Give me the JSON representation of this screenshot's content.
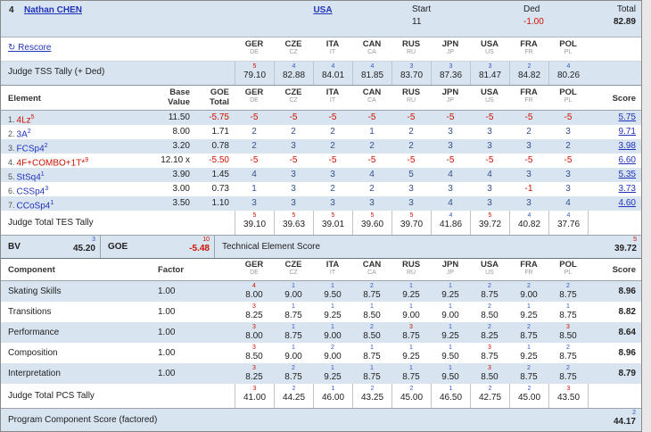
{
  "header": {
    "placement": "4",
    "skater": "Nathan CHEN",
    "nation": "USA",
    "start_label": "Start",
    "start_value": "11",
    "ded_label": "Ded",
    "ded_value": "-1.00",
    "total_label": "Total",
    "total_value": "82.89",
    "rescore_icon": "↻",
    "rescore_label": "Rescore"
  },
  "judges": [
    {
      "code": "GER",
      "sub": "DE"
    },
    {
      "code": "CZE",
      "sub": "CZ"
    },
    {
      "code": "ITA",
      "sub": "IT"
    },
    {
      "code": "CAN",
      "sub": "CA"
    },
    {
      "code": "RUS",
      "sub": "RU"
    },
    {
      "code": "JPN",
      "sub": "JP"
    },
    {
      "code": "USA",
      "sub": "US"
    },
    {
      "code": "FRA",
      "sub": "FR"
    },
    {
      "code": "POL",
      "sub": "PL"
    }
  ],
  "tss_tally": {
    "label": "Judge TSS Tally (+ Ded)",
    "cells": [
      {
        "rank": "5",
        "rc": "r",
        "value": "79.10"
      },
      {
        "rank": "4",
        "rc": "b",
        "value": "82.88"
      },
      {
        "rank": "4",
        "rc": "b",
        "value": "84.01"
      },
      {
        "rank": "4",
        "rc": "b",
        "value": "81.85"
      },
      {
        "rank": "3",
        "rc": "b",
        "value": "83.70"
      },
      {
        "rank": "3",
        "rc": "b",
        "value": "87.36"
      },
      {
        "rank": "3",
        "rc": "b",
        "value": "81.47"
      },
      {
        "rank": "2",
        "rc": "b",
        "value": "84.82"
      },
      {
        "rank": "4",
        "rc": "b",
        "value": "80.26"
      }
    ]
  },
  "elements": {
    "col_element": "Element",
    "col_base_1": "Base",
    "col_base_2": "Value",
    "col_goe_1": "GOE",
    "col_goe_2": "Total",
    "col_score": "Score",
    "rows": [
      {
        "num": "1.",
        "name": "4Lz",
        "sup": "5",
        "neg": true,
        "base": "11.50",
        "goe": "-5.75",
        "marks": [
          "-5",
          "-5",
          "-5",
          "-5",
          "-5",
          "-5",
          "-5",
          "-5",
          "-5"
        ],
        "score": "5.75"
      },
      {
        "num": "2.",
        "name": "3A",
        "sup": "2",
        "neg": false,
        "base": "8.00",
        "goe": "1.71",
        "marks": [
          "2",
          "2",
          "2",
          "1",
          "2",
          "3",
          "3",
          "2",
          "3"
        ],
        "score": "9.71"
      },
      {
        "num": "3.",
        "name": "FCSp4",
        "sup": "2",
        "neg": false,
        "base": "3.20",
        "goe": "0.78",
        "marks": [
          "2",
          "3",
          "2",
          "2",
          "2",
          "3",
          "3",
          "3",
          "2"
        ],
        "score": "3.98"
      },
      {
        "num": "4.",
        "name": "4F+COMBO+1T*",
        "sup": "9",
        "neg": true,
        "base": "12.10 x",
        "goe": "-5.50",
        "marks": [
          "-5",
          "-5",
          "-5",
          "-5",
          "-5",
          "-5",
          "-5",
          "-5",
          "-5"
        ],
        "score": "6.60"
      },
      {
        "num": "5.",
        "name": "StSq4",
        "sup": "1",
        "neg": false,
        "base": "3.90",
        "goe": "1.45",
        "marks": [
          "4",
          "3",
          "3",
          "4",
          "5",
          "4",
          "4",
          "3",
          "3"
        ],
        "score": "5.35"
      },
      {
        "num": "6.",
        "name": "CSSp4",
        "sup": "3",
        "neg": false,
        "base": "3.00",
        "goe": "0.73",
        "marks": [
          "1",
          "3",
          "2",
          "2",
          "3",
          "3",
          "3",
          "-1",
          "3"
        ],
        "score": "3.73"
      },
      {
        "num": "7.",
        "name": "CCoSp4",
        "sup": "1",
        "neg": false,
        "base": "3.50",
        "goe": "1.10",
        "marks": [
          "3",
          "3",
          "3",
          "3",
          "3",
          "4",
          "3",
          "3",
          "4"
        ],
        "score": "4.60"
      }
    ],
    "tes_tally": {
      "label": "Judge Total TES Tally",
      "cells": [
        {
          "rank": "5",
          "rc": "r",
          "value": "39.10"
        },
        {
          "rank": "5",
          "rc": "r",
          "value": "39.63"
        },
        {
          "rank": "5",
          "rc": "r",
          "value": "39.01"
        },
        {
          "rank": "5",
          "rc": "r",
          "value": "39.60"
        },
        {
          "rank": "5",
          "rc": "r",
          "value": "39.70"
        },
        {
          "rank": "4",
          "rc": "b",
          "value": "41.86"
        },
        {
          "rank": "5",
          "rc": "r",
          "value": "39.72"
        },
        {
          "rank": "4",
          "rc": "b",
          "value": "40.82"
        },
        {
          "rank": "4",
          "rc": "b",
          "value": "37.76"
        }
      ]
    }
  },
  "summary": {
    "bv_label": "BV",
    "bv_rank": "3",
    "bv_value": "45.20",
    "goe_label": "GOE",
    "goe_rank": "10",
    "goe_value": "-5.48",
    "tes_label": "Technical Element Score",
    "tes_rank": "5",
    "tes_value": "39.72"
  },
  "components": {
    "col_component": "Component",
    "col_factor": "Factor",
    "col_score": "Score",
    "rows": [
      {
        "name": "Skating Skills",
        "factor": "1.00",
        "score": "8.96",
        "cells": [
          {
            "rank": "4",
            "rc": "r",
            "value": "8.00"
          },
          {
            "rank": "1",
            "rc": "b",
            "value": "9.00"
          },
          {
            "rank": "1",
            "rc": "b",
            "value": "9.50"
          },
          {
            "rank": "2",
            "rc": "b",
            "value": "8.75"
          },
          {
            "rank": "1",
            "rc": "b",
            "value": "9.25"
          },
          {
            "rank": "1",
            "rc": "b",
            "value": "9.25"
          },
          {
            "rank": "2",
            "rc": "b",
            "value": "8.75"
          },
          {
            "rank": "2",
            "rc": "b",
            "value": "9.00"
          },
          {
            "rank": "2",
            "rc": "b",
            "value": "8.75"
          }
        ]
      },
      {
        "name": "Transitions",
        "factor": "1.00",
        "score": "8.82",
        "cells": [
          {
            "rank": "3",
            "rc": "r",
            "value": "8.25"
          },
          {
            "rank": "1",
            "rc": "b",
            "value": "8.75"
          },
          {
            "rank": "1",
            "rc": "b",
            "value": "9.25"
          },
          {
            "rank": "1",
            "rc": "b",
            "value": "8.50"
          },
          {
            "rank": "1",
            "rc": "b",
            "value": "9.00"
          },
          {
            "rank": "1",
            "rc": "b",
            "value": "9.00"
          },
          {
            "rank": "2",
            "rc": "b",
            "value": "8.50"
          },
          {
            "rank": "1",
            "rc": "b",
            "value": "9.25"
          },
          {
            "rank": "1",
            "rc": "b",
            "value": "8.75"
          }
        ]
      },
      {
        "name": "Performance",
        "factor": "1.00",
        "score": "8.64",
        "cells": [
          {
            "rank": "3",
            "rc": "r",
            "value": "8.00"
          },
          {
            "rank": "1",
            "rc": "b",
            "value": "8.75"
          },
          {
            "rank": "1",
            "rc": "b",
            "value": "9.00"
          },
          {
            "rank": "2",
            "rc": "b",
            "value": "8.50"
          },
          {
            "rank": "3",
            "rc": "r",
            "value": "8.75"
          },
          {
            "rank": "1",
            "rc": "b",
            "value": "9.25"
          },
          {
            "rank": "2",
            "rc": "b",
            "value": "8.25"
          },
          {
            "rank": "2",
            "rc": "b",
            "value": "8.75"
          },
          {
            "rank": "3",
            "rc": "r",
            "value": "8.50"
          }
        ]
      },
      {
        "name": "Composition",
        "factor": "1.00",
        "score": "8.96",
        "cells": [
          {
            "rank": "3",
            "rc": "r",
            "value": "8.50"
          },
          {
            "rank": "1",
            "rc": "b",
            "value": "9.00"
          },
          {
            "rank": "2",
            "rc": "b",
            "value": "9.00"
          },
          {
            "rank": "1",
            "rc": "b",
            "value": "8.75"
          },
          {
            "rank": "1",
            "rc": "b",
            "value": "9.25"
          },
          {
            "rank": "1",
            "rc": "b",
            "value": "9.50"
          },
          {
            "rank": "3",
            "rc": "r",
            "value": "8.75"
          },
          {
            "rank": "1",
            "rc": "b",
            "value": "9.25"
          },
          {
            "rank": "2",
            "rc": "b",
            "value": "8.75"
          }
        ]
      },
      {
        "name": "Interpretation",
        "factor": "1.00",
        "score": "8.79",
        "cells": [
          {
            "rank": "3",
            "rc": "r",
            "value": "8.25"
          },
          {
            "rank": "2",
            "rc": "b",
            "value": "8.75"
          },
          {
            "rank": "1",
            "rc": "b",
            "value": "9.25"
          },
          {
            "rank": "1",
            "rc": "b",
            "value": "8.75"
          },
          {
            "rank": "1",
            "rc": "b",
            "value": "8.75"
          },
          {
            "rank": "1",
            "rc": "b",
            "value": "9.50"
          },
          {
            "rank": "3",
            "rc": "r",
            "value": "8.50"
          },
          {
            "rank": "2",
            "rc": "b",
            "value": "8.75"
          },
          {
            "rank": "2",
            "rc": "b",
            "value": "8.75"
          }
        ]
      }
    ],
    "pcs_tally": {
      "label": "Judge Total PCS Tally",
      "cells": [
        {
          "rank": "3",
          "rc": "r",
          "value": "41.00"
        },
        {
          "rank": "2",
          "rc": "b",
          "value": "44.25"
        },
        {
          "rank": "1",
          "rc": "b",
          "value": "46.00"
        },
        {
          "rank": "2",
          "rc": "b",
          "value": "43.25"
        },
        {
          "rank": "2",
          "rc": "b",
          "value": "45.00"
        },
        {
          "rank": "1",
          "rc": "b",
          "value": "46.50"
        },
        {
          "rank": "2",
          "rc": "b",
          "value": "42.75"
        },
        {
          "rank": "2",
          "rc": "b",
          "value": "45.00"
        },
        {
          "rank": "3",
          "rc": "r",
          "value": "43.50"
        }
      ]
    },
    "factored": {
      "label": "Program Component Score (factored)",
      "rank": "2",
      "rc": "b",
      "value": "44.17"
    }
  }
}
